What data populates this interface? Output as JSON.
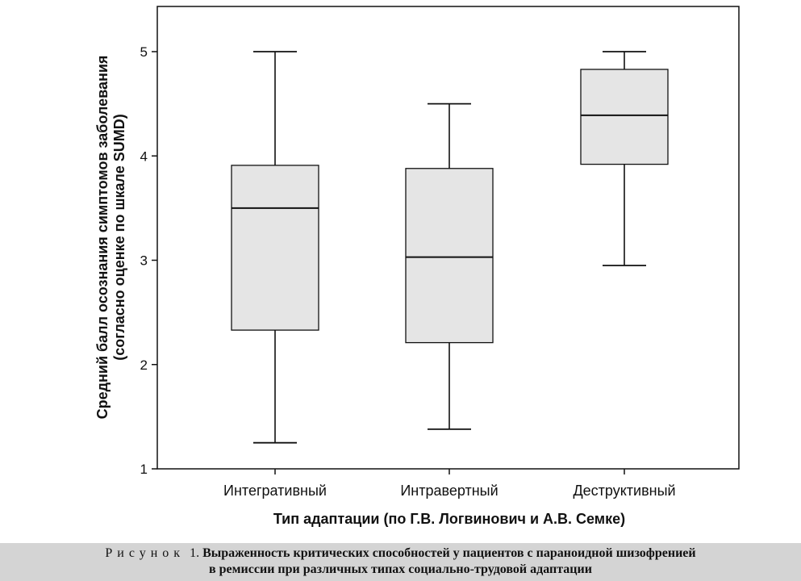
{
  "chart_data": {
    "type": "box",
    "xlabel": "Тип адаптации (по Г.В. Логвинович и А.В. Семке)",
    "ylabel_line1": "Средний балл осознания симптомов заболевания",
    "ylabel_line2": "(согласно оценке по шкале SUMD)",
    "ylim": [
      1,
      5.4
    ],
    "yticks": [
      1,
      2,
      3,
      4,
      5
    ],
    "grid": false,
    "categories": [
      "Интегративный",
      "Интравертный",
      "Деструктивный"
    ],
    "boxes": [
      {
        "category": "Интегративный",
        "whisker_low": 1.25,
        "q1": 2.33,
        "median": 3.5,
        "q3": 3.91,
        "whisker_high": 5.0
      },
      {
        "category": "Интравертный",
        "whisker_low": 1.38,
        "q1": 2.21,
        "median": 3.03,
        "q3": 3.88,
        "whisker_high": 4.5
      },
      {
        "category": "Деструктивный",
        "whisker_low": 2.95,
        "q1": 3.92,
        "median": 4.39,
        "q3": 4.83,
        "whisker_high": 5.0
      }
    ],
    "box_fill": "#e5e5e5",
    "line_color": "#111111"
  },
  "caption": {
    "lead": "Рисунок",
    "number": "1.",
    "line1": "Выраженность критических способностей у пациентов с параноидной шизофренией",
    "line2": "в ремиссии при различных типах социально-трудовой адаптации"
  }
}
